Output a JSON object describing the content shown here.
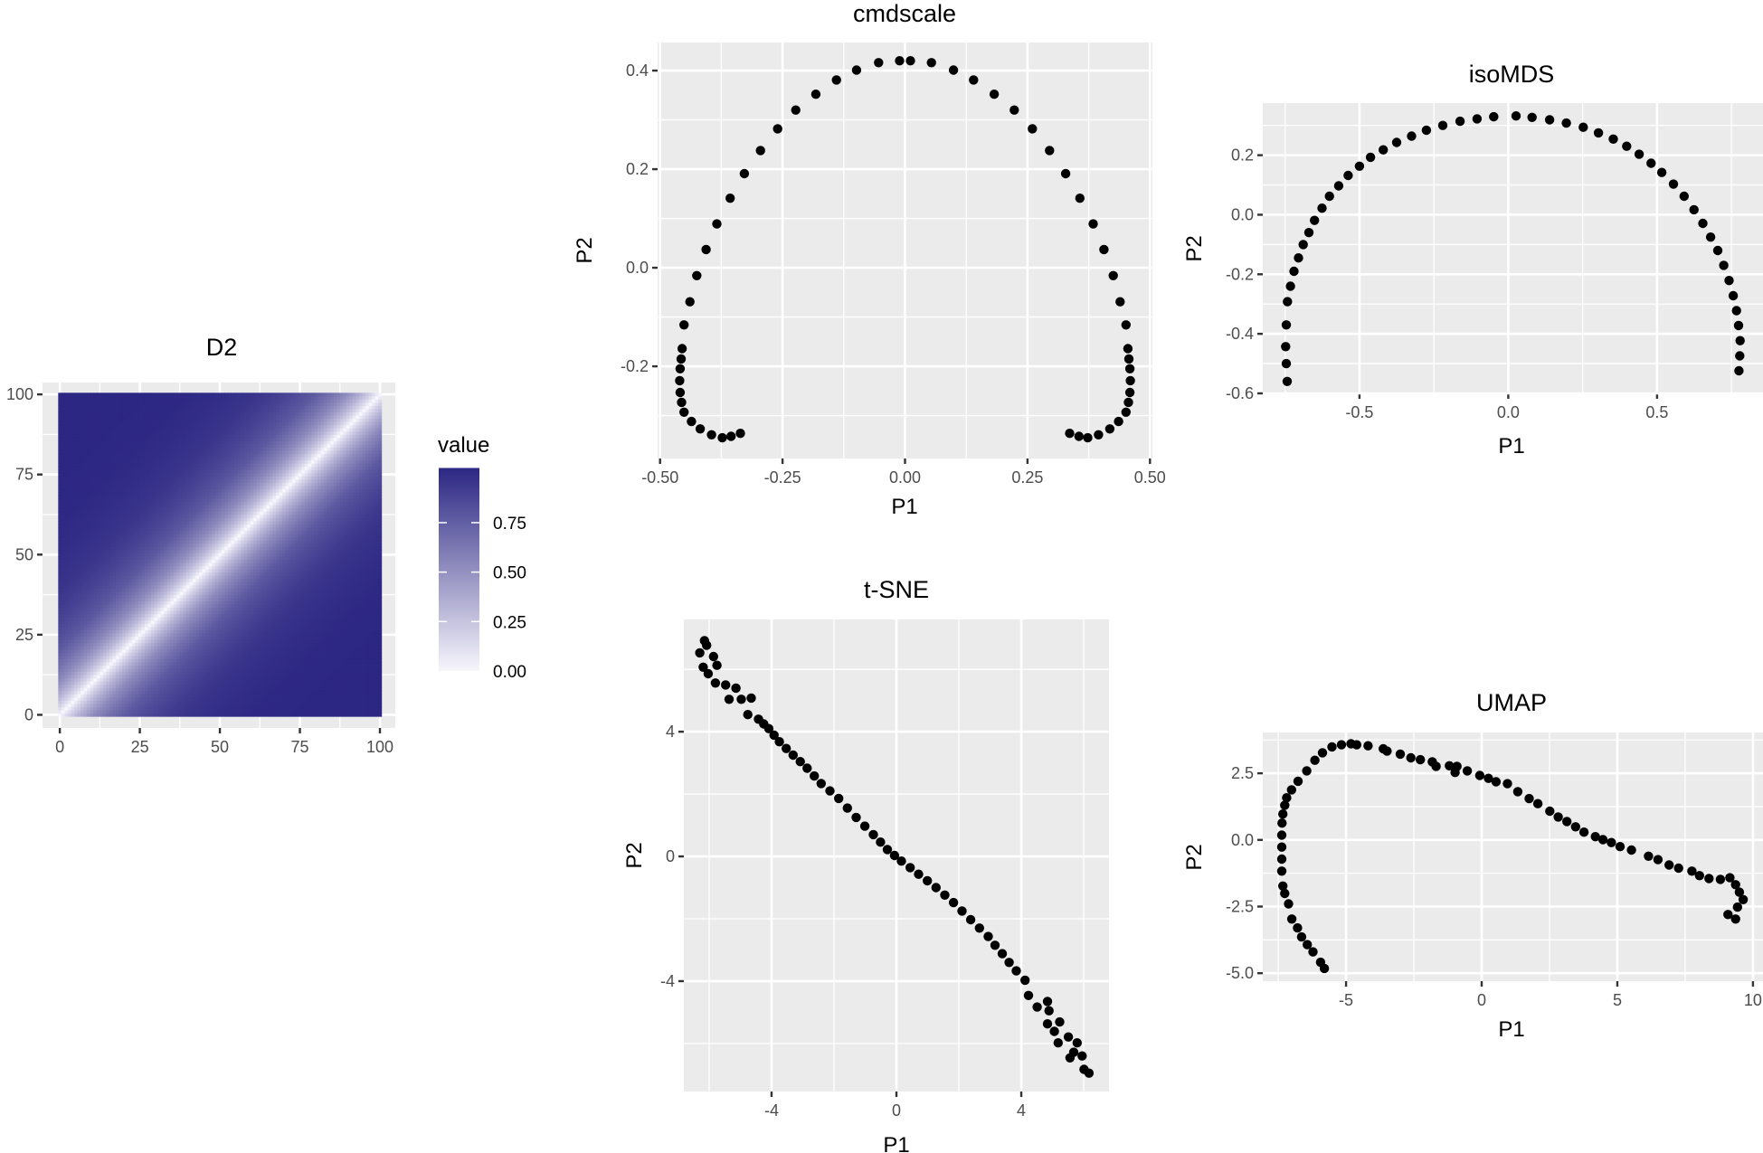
{
  "chart_data": [
    {
      "id": "d2",
      "type": "heatmap",
      "title": "D2",
      "xlabel": "",
      "ylabel": "",
      "x_range": [
        0,
        100
      ],
      "y_range": [
        0,
        100
      ],
      "xlim": [
        -5.4,
        104.8
      ],
      "ylim": [
        -4.1,
        103.7
      ],
      "x_breaks": [
        0,
        25,
        50,
        75,
        100
      ],
      "y_breaks": [
        0,
        25,
        50,
        75,
        100
      ],
      "value_rule": "symmetric, depends on |x - y|",
      "value_by_offset": {
        "offset": [
          0,
          1,
          2,
          3,
          4,
          5,
          7,
          10,
          12,
          15,
          20,
          25,
          30,
          35,
          40,
          50,
          60,
          75,
          100
        ],
        "value": [
          0,
          0.06,
          0.12,
          0.18,
          0.23,
          0.28,
          0.37,
          0.49,
          0.55,
          0.63,
          0.74,
          0.81,
          0.86,
          0.9,
          0.93,
          0.96,
          0.98,
          0.99,
          0.99
        ]
      },
      "legend": {
        "title": "value",
        "breaks": [
          0.0,
          0.25,
          0.5,
          0.75
        ],
        "labels": [
          "0.00",
          "0.25",
          "0.50",
          "0.75"
        ],
        "low_color": "#F7F6FC",
        "high_color": "#2C2783",
        "range": [
          0,
          0.99
        ]
      },
      "grid": true
    },
    {
      "id": "cmdscale",
      "type": "scatter",
      "title": "cmdscale",
      "xlabel": "P1",
      "ylabel": "P2",
      "xlim": [
        -0.505,
        0.505
      ],
      "ylim": [
        -0.387,
        0.457
      ],
      "x_breaks": [
        -0.5,
        -0.25,
        0,
        0.25,
        0.5
      ],
      "x_labels": [
        "-0.50",
        "-0.25",
        "0.00",
        "0.25",
        "0.50"
      ],
      "y_breaks": [
        -0.2,
        0,
        0.2,
        0.4
      ],
      "y_labels": [
        "-0.2",
        "0.0",
        "0.2",
        "0.4"
      ],
      "grid": true,
      "points": [
        [
          -0.336,
          -0.336
        ],
        [
          -0.355,
          -0.342
        ],
        [
          -0.373,
          -0.345
        ],
        [
          -0.395,
          -0.339
        ],
        [
          -0.418,
          -0.327
        ],
        [
          -0.436,
          -0.312
        ],
        [
          -0.451,
          -0.293
        ],
        [
          -0.456,
          -0.273
        ],
        [
          -0.459,
          -0.253
        ],
        [
          -0.46,
          -0.229
        ],
        [
          -0.459,
          -0.205
        ],
        [
          -0.457,
          -0.185
        ],
        [
          -0.455,
          -0.164
        ],
        [
          -0.451,
          -0.116
        ],
        [
          -0.439,
          -0.069
        ],
        [
          -0.425,
          -0.016
        ],
        [
          -0.406,
          0.037
        ],
        [
          -0.384,
          0.089
        ],
        [
          -0.357,
          0.141
        ],
        [
          -0.328,
          0.191
        ],
        [
          -0.295,
          0.238
        ],
        [
          -0.26,
          0.282
        ],
        [
          -0.223,
          0.32
        ],
        [
          -0.182,
          0.352
        ],
        [
          -0.14,
          0.381
        ],
        [
          -0.099,
          0.401
        ],
        [
          -0.054,
          0.416
        ],
        [
          -0.011,
          0.42
        ],
        [
          0.011,
          0.42
        ],
        [
          0.054,
          0.416
        ],
        [
          0.099,
          0.401
        ],
        [
          0.14,
          0.381
        ],
        [
          0.182,
          0.352
        ],
        [
          0.223,
          0.32
        ],
        [
          0.26,
          0.282
        ],
        [
          0.295,
          0.238
        ],
        [
          0.328,
          0.191
        ],
        [
          0.357,
          0.141
        ],
        [
          0.384,
          0.089
        ],
        [
          0.406,
          0.037
        ],
        [
          0.425,
          -0.016
        ],
        [
          0.439,
          -0.069
        ],
        [
          0.451,
          -0.116
        ],
        [
          0.455,
          -0.164
        ],
        [
          0.457,
          -0.185
        ],
        [
          0.459,
          -0.205
        ],
        [
          0.46,
          -0.229
        ],
        [
          0.459,
          -0.253
        ],
        [
          0.456,
          -0.273
        ],
        [
          0.451,
          -0.293
        ],
        [
          0.436,
          -0.312
        ],
        [
          0.418,
          -0.327
        ],
        [
          0.395,
          -0.339
        ],
        [
          0.373,
          -0.345
        ],
        [
          0.355,
          -0.342
        ],
        [
          0.336,
          -0.336
        ]
      ]
    },
    {
      "id": "isomds",
      "type": "scatter",
      "title": "isoMDS",
      "xlabel": "P1",
      "ylabel": "P2",
      "xlim": [
        -0.825,
        0.856
      ],
      "ylim": [
        -0.6,
        0.375
      ],
      "x_breaks": [
        -0.5,
        0,
        0.5
      ],
      "x_labels": [
        "-0.5",
        "0.0",
        "0.5"
      ],
      "y_breaks": [
        -0.6,
        -0.4,
        -0.2,
        0,
        0.2
      ],
      "y_labels": [
        "-0.6",
        "-0.4",
        "-0.2",
        "0.0",
        "0.2"
      ],
      "grid": true,
      "points": [
        [
          -0.743,
          -0.56
        ],
        [
          -0.746,
          -0.5
        ],
        [
          -0.748,
          -0.443
        ],
        [
          -0.746,
          -0.37
        ],
        [
          -0.742,
          -0.292
        ],
        [
          -0.732,
          -0.24
        ],
        [
          -0.72,
          -0.19
        ],
        [
          -0.705,
          -0.145
        ],
        [
          -0.689,
          -0.1
        ],
        [
          -0.67,
          -0.06
        ],
        [
          -0.651,
          -0.019
        ],
        [
          -0.626,
          0.022
        ],
        [
          -0.601,
          0.062
        ],
        [
          -0.57,
          0.097
        ],
        [
          -0.538,
          0.132
        ],
        [
          -0.5,
          0.163
        ],
        [
          -0.463,
          0.193
        ],
        [
          -0.42,
          0.218
        ],
        [
          -0.375,
          0.243
        ],
        [
          -0.325,
          0.264
        ],
        [
          -0.275,
          0.284
        ],
        [
          -0.22,
          0.3
        ],
        [
          -0.162,
          0.314
        ],
        [
          -0.105,
          0.322
        ],
        [
          -0.049,
          0.329
        ],
        [
          0.026,
          0.332
        ],
        [
          0.08,
          0.327
        ],
        [
          0.139,
          0.319
        ],
        [
          0.195,
          0.308
        ],
        [
          0.252,
          0.294
        ],
        [
          0.303,
          0.275
        ],
        [
          0.353,
          0.254
        ],
        [
          0.398,
          0.23
        ],
        [
          0.44,
          0.203
        ],
        [
          0.48,
          0.173
        ],
        [
          0.516,
          0.142
        ],
        [
          0.555,
          0.103
        ],
        [
          0.591,
          0.062
        ],
        [
          0.624,
          0.017
        ],
        [
          0.654,
          -0.029
        ],
        [
          0.68,
          -0.075
        ],
        [
          0.704,
          -0.12
        ],
        [
          0.724,
          -0.17
        ],
        [
          0.742,
          -0.221
        ],
        [
          0.756,
          -0.272
        ],
        [
          0.767,
          -0.322
        ],
        [
          0.774,
          -0.372
        ],
        [
          0.779,
          -0.423
        ],
        [
          0.778,
          -0.474
        ],
        [
          0.775,
          -0.524
        ]
      ]
    },
    {
      "id": "tsne",
      "type": "scatter",
      "title": "t-SNE",
      "xlabel": "P1",
      "ylabel": "P2",
      "xlim": [
        -6.81,
        6.81
      ],
      "ylim": [
        -7.54,
        7.6
      ],
      "x_breaks": [
        -4,
        0,
        4
      ],
      "x_labels": [
        "-4",
        "0",
        "4"
      ],
      "y_breaks": [
        -4,
        0,
        4
      ],
      "y_labels": [
        "-4",
        "0",
        "4"
      ],
      "grid": true,
      "points": [
        [
          -6.15,
          6.92
        ],
        [
          -6.08,
          6.77
        ],
        [
          -6.3,
          6.53
        ],
        [
          -5.86,
          6.41
        ],
        [
          -5.75,
          6.13
        ],
        [
          -6.19,
          6.07
        ],
        [
          -6.03,
          5.86
        ],
        [
          -5.8,
          5.56
        ],
        [
          -5.47,
          5.5
        ],
        [
          -5.14,
          5.4
        ],
        [
          -5.36,
          5.04
        ],
        [
          -4.97,
          5.04
        ],
        [
          -4.65,
          5.08
        ],
        [
          -4.76,
          4.55
        ],
        [
          -4.42,
          4.4
        ],
        [
          -4.25,
          4.25
        ],
        [
          -4.09,
          4.1
        ],
        [
          -3.92,
          3.89
        ],
        [
          -3.75,
          3.68
        ],
        [
          -3.53,
          3.46
        ],
        [
          -3.31,
          3.25
        ],
        [
          -3.08,
          3.04
        ],
        [
          -2.86,
          2.83
        ],
        [
          -2.63,
          2.58
        ],
        [
          -2.41,
          2.34
        ],
        [
          -2.13,
          2.1
        ],
        [
          -1.85,
          1.86
        ],
        [
          -1.57,
          1.55
        ],
        [
          -1.29,
          1.25
        ],
        [
          -1.01,
          0.97
        ],
        [
          -0.74,
          0.7
        ],
        [
          -0.51,
          0.46
        ],
        [
          -0.29,
          0.22
        ],
        [
          -0.06,
          0.03
        ],
        [
          0.16,
          -0.15
        ],
        [
          0.44,
          -0.36
        ],
        [
          0.71,
          -0.57
        ],
        [
          0.99,
          -0.78
        ],
        [
          1.27,
          -1.0
        ],
        [
          1.55,
          -1.24
        ],
        [
          1.83,
          -1.48
        ],
        [
          2.1,
          -1.75
        ],
        [
          2.38,
          -2.03
        ],
        [
          2.66,
          -2.3
        ],
        [
          2.94,
          -2.57
        ],
        [
          3.16,
          -2.85
        ],
        [
          3.39,
          -3.12
        ],
        [
          3.61,
          -3.4
        ],
        [
          3.84,
          -3.67
        ],
        [
          4.12,
          -3.97
        ],
        [
          4.23,
          -4.46
        ],
        [
          4.51,
          -4.83
        ],
        [
          4.84,
          -4.65
        ],
        [
          4.89,
          -4.95
        ],
        [
          4.84,
          -5.37
        ],
        [
          5.06,
          -5.61
        ],
        [
          5.23,
          -5.31
        ],
        [
          5.18,
          -5.98
        ],
        [
          5.51,
          -5.79
        ],
        [
          5.56,
          -6.46
        ],
        [
          5.79,
          -5.98
        ],
        [
          5.68,
          -6.28
        ],
        [
          5.95,
          -6.4
        ],
        [
          6.01,
          -6.83
        ],
        [
          6.17,
          -6.95
        ]
      ]
    },
    {
      "id": "umap",
      "type": "scatter",
      "title": "UMAP",
      "xlabel": "P1",
      "ylabel": "P2",
      "xlim": [
        -8.07,
        10.37
      ],
      "ylim": [
        -5.3,
        4.03
      ],
      "x_breaks": [
        -5,
        0,
        5,
        10
      ],
      "x_labels": [
        "-5",
        "0",
        "5",
        "10"
      ],
      "y_breaks": [
        -5,
        -2.5,
        0,
        2.5
      ],
      "y_labels": [
        "-5.0",
        "-2.5",
        "0.0",
        "2.5"
      ],
      "grid": true,
      "points": [
        [
          -5.8,
          -4.82
        ],
        [
          -5.94,
          -4.59
        ],
        [
          -6.22,
          -4.2
        ],
        [
          -6.43,
          -3.93
        ],
        [
          -6.64,
          -3.64
        ],
        [
          -6.79,
          -3.3
        ],
        [
          -7.0,
          -2.97
        ],
        [
          -7.12,
          -2.4
        ],
        [
          -7.26,
          -2.01
        ],
        [
          -7.33,
          -1.73
        ],
        [
          -7.37,
          -1.17
        ],
        [
          -7.37,
          -0.72
        ],
        [
          -7.37,
          -0.27
        ],
        [
          -7.37,
          0.18
        ],
        [
          -7.36,
          0.63
        ],
        [
          -7.33,
          0.97
        ],
        [
          -7.26,
          1.3
        ],
        [
          -7.19,
          1.58
        ],
        [
          -7.01,
          1.88
        ],
        [
          -6.77,
          2.2
        ],
        [
          -6.45,
          2.59
        ],
        [
          -6.15,
          2.99
        ],
        [
          -5.87,
          3.27
        ],
        [
          -5.52,
          3.49
        ],
        [
          -5.17,
          3.57
        ],
        [
          -4.82,
          3.61
        ],
        [
          -4.61,
          3.57
        ],
        [
          -4.19,
          3.53
        ],
        [
          -3.63,
          3.42
        ],
        [
          -3.49,
          3.33
        ],
        [
          -3.0,
          3.22
        ],
        [
          -2.61,
          3.08
        ],
        [
          -2.26,
          3.01
        ],
        [
          -1.82,
          2.93
        ],
        [
          -1.68,
          2.76
        ],
        [
          -1.19,
          2.78
        ],
        [
          -0.91,
          2.76
        ],
        [
          -0.98,
          2.53
        ],
        [
          -0.53,
          2.59
        ],
        [
          -0.07,
          2.42
        ],
        [
          0.25,
          2.31
        ],
        [
          0.53,
          2.18
        ],
        [
          0.95,
          2.11
        ],
        [
          1.33,
          1.81
        ],
        [
          1.75,
          1.55
        ],
        [
          2.07,
          1.36
        ],
        [
          2.51,
          1.08
        ],
        [
          2.82,
          0.86
        ],
        [
          3.14,
          0.69
        ],
        [
          3.46,
          0.49
        ],
        [
          3.77,
          0.29
        ],
        [
          4.19,
          0.12
        ],
        [
          4.47,
          0.01
        ],
        [
          4.78,
          -0.1
        ],
        [
          5.1,
          -0.25
        ],
        [
          5.52,
          -0.38
        ],
        [
          6.15,
          -0.61
        ],
        [
          6.5,
          -0.74
        ],
        [
          6.91,
          -0.94
        ],
        [
          7.26,
          -1.06
        ],
        [
          7.75,
          -1.17
        ],
        [
          8.03,
          -1.34
        ],
        [
          8.38,
          -1.45
        ],
        [
          8.8,
          -1.48
        ],
        [
          9.15,
          -1.42
        ],
        [
          9.36,
          -1.68
        ],
        [
          9.5,
          -1.96
        ],
        [
          9.64,
          -2.24
        ],
        [
          9.43,
          -2.52
        ],
        [
          9.08,
          -2.8
        ],
        [
          9.36,
          -2.97
        ]
      ]
    }
  ],
  "style": {
    "panel_bg": "#EBEBEB",
    "grid_color": "#FFFFFF",
    "point_color": "#000000",
    "tick_text_color": "#4D4D4D"
  }
}
